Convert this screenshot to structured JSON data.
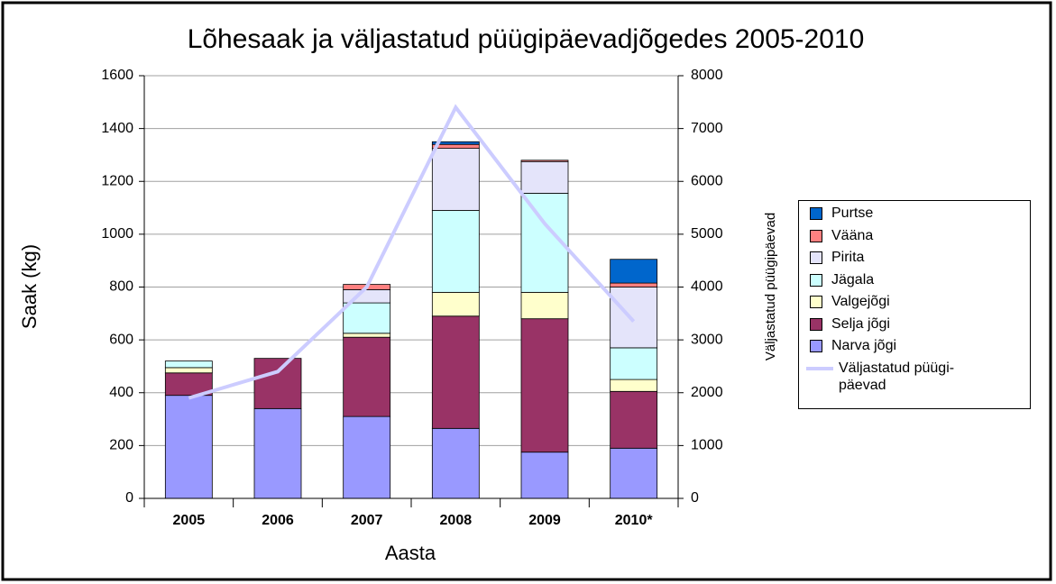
{
  "chart_data": {
    "type": "bar",
    "stacked": true,
    "title": "Lõhesaak ja väljastatud püügipäevadjõgedes 2005-2010",
    "xlabel": "Aasta",
    "ylabel": "Saak (kg)",
    "y2label": "Väljastatud püügipäevad",
    "categories": [
      "2005",
      "2006",
      "2007",
      "2008",
      "2009",
      "2010*"
    ],
    "ylim": [
      0,
      1600
    ],
    "yticks": [
      0,
      200,
      400,
      600,
      800,
      1000,
      1200,
      1400,
      1600
    ],
    "y2lim": [
      0,
      8000
    ],
    "y2ticks": [
      0,
      1000,
      2000,
      3000,
      4000,
      5000,
      6000,
      7000,
      8000
    ],
    "grid": true,
    "legend": "right",
    "series": [
      {
        "name": "Narva jõgi",
        "color": "#9999ff",
        "values": [
          390,
          340,
          310,
          265,
          175,
          190
        ]
      },
      {
        "name": "Selja jõgi",
        "color": "#993366",
        "values": [
          85,
          190,
          300,
          425,
          505,
          215
        ]
      },
      {
        "name": "Valgejõgi",
        "color": "#ffffcc",
        "values": [
          20,
          0,
          15,
          90,
          100,
          45
        ]
      },
      {
        "name": "Jägala",
        "color": "#ccffff",
        "values": [
          25,
          0,
          115,
          310,
          375,
          120
        ]
      },
      {
        "name": "Pirita",
        "color": "#e4e4fa",
        "values": [
          0,
          0,
          50,
          235,
          120,
          230
        ]
      },
      {
        "name": "Vääna",
        "color": "#ff8080",
        "values": [
          0,
          0,
          20,
          15,
          5,
          15
        ]
      },
      {
        "name": "Purtse",
        "color": "#0066cc",
        "values": [
          0,
          0,
          0,
          10,
          0,
          90
        ]
      },
      {
        "name": "Väljastatud püügi-päevad",
        "color": "#ccccff",
        "type": "line",
        "axis": "y2",
        "values": [
          1900,
          2400,
          4000,
          7400,
          5200,
          3350
        ]
      }
    ]
  }
}
